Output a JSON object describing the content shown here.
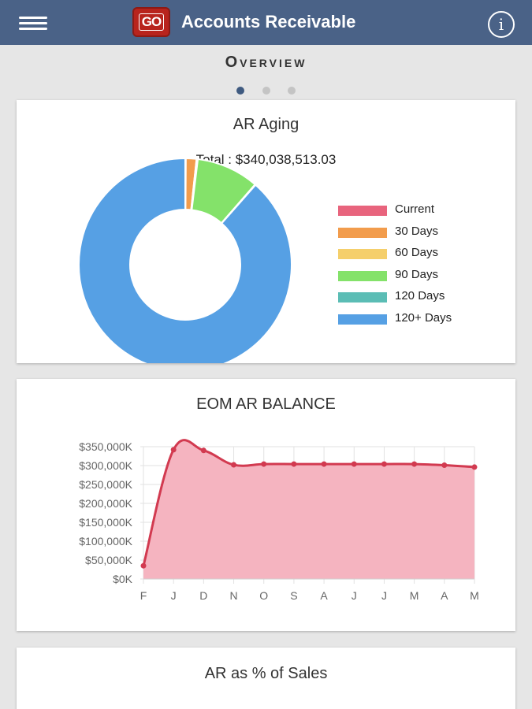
{
  "header": {
    "logo_text": "GO",
    "title": "Accounts Receivable",
    "info_glyph": "i",
    "menu_icon": "hamburger-icon",
    "color": "#4a6287"
  },
  "page": {
    "title": "Overview",
    "dots": [
      true,
      false,
      false
    ]
  },
  "cards": {
    "aging": {
      "title": "AR Aging",
      "total_label": "Total : $340,038,513.03"
    },
    "balance": {
      "title": "EOM AR BALANCE"
    },
    "sales": {
      "title": "AR as % of Sales"
    }
  },
  "chart_data": [
    {
      "type": "pie",
      "variant": "donut",
      "title": "AR Aging",
      "categories": [
        "Current",
        "30 Days",
        "60 Days",
        "90 Days",
        "120 Days",
        "120+ Days"
      ],
      "values": [
        0.1,
        1.6,
        0.2,
        9.5,
        0.1,
        88.5
      ],
      "colors": [
        "#e8647d",
        "#f29c4c",
        "#f5cf6b",
        "#84e26a",
        "#5bbdb5",
        "#56a0e4"
      ],
      "legend": "right"
    },
    {
      "type": "area",
      "title": "EOM AR BALANCE",
      "categories": [
        "F",
        "J",
        "D",
        "N",
        "O",
        "S",
        "A",
        "J",
        "J",
        "M",
        "A",
        "M"
      ],
      "values": [
        35000,
        342000,
        340000,
        302000,
        304000,
        304000,
        304000,
        304000,
        304000,
        304000,
        301000,
        296000
      ],
      "y_ticks": [
        "$0K",
        "$50,000K",
        "$100,000K",
        "$150,000K",
        "$200,000K",
        "$250,000K",
        "$300,000K",
        "$350,000K"
      ],
      "ylim": [
        0,
        350000
      ],
      "grid": true,
      "line_color": "#d23a50",
      "fill_color": "#f5b4c0"
    }
  ]
}
